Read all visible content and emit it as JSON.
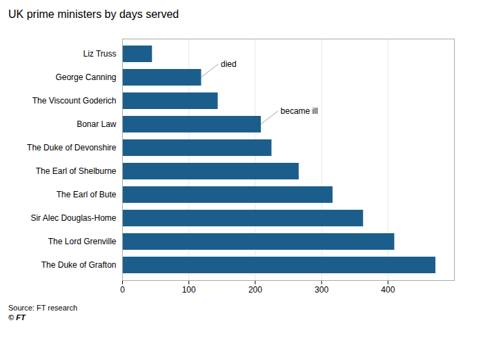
{
  "chart_data": {
    "type": "bar",
    "orientation": "horizontal",
    "title": "UK prime ministers by days served",
    "categories": [
      "The Duke of Grafton",
      "The Lord Grenville",
      "Sir Alec Douglas-Home",
      "The Earl of Bute",
      "The Earl of Shelburne",
      "The Duke of Devonshire",
      "Bonar Law",
      "The Viscount Goderich",
      "George Canning",
      "Liz Truss"
    ],
    "values": [
      472,
      410,
      363,
      317,
      266,
      225,
      209,
      144,
      119,
      45
    ],
    "color": "#1b5e8c",
    "xlim": [
      0,
      500
    ],
    "xticks": [
      0,
      100,
      200,
      300,
      400
    ],
    "grid": true,
    "annotations": [
      {
        "category": "George Canning",
        "text": "died"
      },
      {
        "category": "Bonar Law",
        "text": "became ill"
      }
    ],
    "source": "Source: FT research",
    "footer": "© FT"
  }
}
